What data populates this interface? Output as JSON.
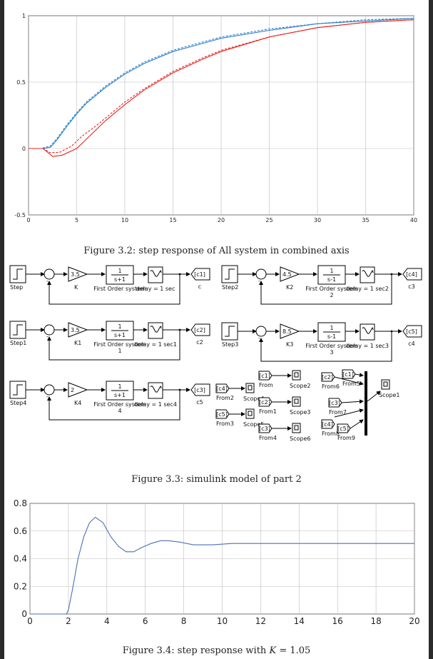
{
  "figure1": {
    "caption": "Figure 3.2: step response of All system in combined axis",
    "chart_data": {
      "type": "line",
      "title": "",
      "xlabel": "",
      "ylabel": "",
      "xlim": [
        0,
        40
      ],
      "ylim": [
        -0.5,
        1
      ],
      "xticks": [
        "0",
        "5",
        "10",
        "15",
        "20",
        "25",
        "30",
        "35",
        "40"
      ],
      "yticks": [
        "-0.5",
        "0",
        "0.5",
        "1"
      ],
      "grid": true,
      "series": [
        {
          "color": "#2a7fc9",
          "x": [
            0,
            1.5,
            2.3,
            3,
            4,
            5,
            6,
            8,
            10,
            12,
            15,
            18,
            20,
            25,
            30,
            35,
            40
          ],
          "y": [
            0,
            0,
            0.01,
            0.07,
            0.17,
            0.26,
            0.34,
            0.46,
            0.56,
            0.64,
            0.73,
            0.79,
            0.83,
            0.89,
            0.94,
            0.96,
            0.98
          ]
        },
        {
          "color": "#2a7fc9",
          "x": [
            0,
            1.3,
            2.3,
            3,
            4,
            5,
            6,
            8,
            10,
            12,
            15,
            18,
            20,
            25,
            30,
            35,
            40
          ],
          "y": [
            0,
            0,
            0.02,
            0.08,
            0.18,
            0.27,
            0.35,
            0.47,
            0.57,
            0.65,
            0.74,
            0.8,
            0.84,
            0.9,
            0.94,
            0.97,
            0.98
          ]
        },
        {
          "color": "#e8231e",
          "x": [
            0,
            1.5,
            2.5,
            3.5,
            5,
            6,
            7,
            8,
            10,
            12,
            15,
            18,
            20,
            25,
            30,
            35,
            40
          ],
          "y": [
            0,
            0,
            -0.06,
            -0.05,
            0.0,
            0.07,
            0.14,
            0.21,
            0.33,
            0.44,
            0.57,
            0.67,
            0.73,
            0.84,
            0.91,
            0.95,
            0.97
          ]
        },
        {
          "color": "#e8231e",
          "x": [
            0,
            1.5,
            2.2,
            3.2,
            4.5,
            5.5,
            7,
            8,
            10,
            12,
            15,
            18,
            20,
            25,
            30,
            35,
            40
          ],
          "y": [
            0,
            0,
            -0.03,
            -0.03,
            0.02,
            0.09,
            0.17,
            0.23,
            0.35,
            0.45,
            0.58,
            0.68,
            0.74,
            0.84,
            0.91,
            0.95,
            0.97
          ]
        }
      ]
    }
  },
  "figure2": {
    "caption": "Figure 3.3: simulink model of part 2",
    "rows": [
      {
        "step": "Step",
        "gain": "K",
        "gain_val": "3.5",
        "tf_num": "1",
        "tf_den": "s+1",
        "tf_label": "First Order system",
        "tf_label2": "",
        "delay": "delay = 1 sec",
        "goto": "[c1]",
        "goto_label": "c"
      },
      {
        "step": "Step2",
        "gain": "K2",
        "gain_val": "4.5",
        "tf_num": "1",
        "tf_den": "s-1",
        "tf_label": "First Order system",
        "tf_label2": "2",
        "delay": "delay = 1 sec2",
        "goto": "[c4]",
        "goto_label": "c3"
      },
      {
        "step": "Step1",
        "gain": "K1",
        "gain_val": "3.5",
        "tf_num": "1",
        "tf_den": "s+1",
        "tf_label": "First Order system",
        "tf_label2": "1",
        "delay": "delay = 1 sec1",
        "goto": "[c2]",
        "goto_label": "c2"
      },
      {
        "step": "Step3",
        "gain": "K3",
        "gain_val": "8.5",
        "tf_num": "1",
        "tf_den": "s-1",
        "tf_label": "First Order system",
        "tf_label2": "3",
        "delay": "delay = 1 sec3",
        "goto": "[c5]",
        "goto_label": "c4"
      },
      {
        "step": "Step4",
        "gain": "K4",
        "gain_val": "2",
        "tf_num": "1",
        "tf_den": "s+1",
        "tf_label": "First Order system",
        "tf_label2": "4",
        "delay": "delay = 1 sec4",
        "goto": "[c3]",
        "goto_label": "c5"
      }
    ],
    "from_blocks": [
      {
        "tag": "[c1]",
        "label": "From"
      },
      {
        "tag": "[c4]",
        "label": "From2"
      },
      {
        "tag": "[c2]",
        "label": "From1"
      },
      {
        "tag": "[c5]",
        "label": "From3"
      },
      {
        "tag": "[c3]",
        "label": "From4"
      },
      {
        "tag": "[c2]",
        "label": "From6"
      },
      {
        "tag": "[c1]",
        "label": "From5"
      },
      {
        "tag": "[c3]",
        "label": "From7"
      },
      {
        "tag": "[c4]",
        "label": "From8"
      },
      {
        "tag": "[c5]",
        "label": "From9"
      }
    ],
    "scopes": [
      "Scope2",
      "Scope4",
      "Scope3",
      "Scope5",
      "Scope6",
      "Scope1"
    ]
  },
  "figure3": {
    "caption_prefix": "Figure 3.4: step response with",
    "caption_var": "K",
    "caption_suffix": "= 1.05",
    "chart_data": {
      "type": "line",
      "title": "",
      "xlabel": "",
      "ylabel": "",
      "xlim": [
        0,
        20
      ],
      "ylim": [
        0,
        0.8
      ],
      "xticks": [
        "0",
        "2",
        "4",
        "6",
        "8",
        "10",
        "12",
        "14",
        "16",
        "18",
        "20"
      ],
      "yticks": [
        "0",
        "0.2",
        "0.4",
        "0.6",
        "0.8"
      ],
      "grid": true,
      "series": [
        {
          "color": "#4a6fb5",
          "x": [
            0,
            1.9,
            2.0,
            2.2,
            2.5,
            2.8,
            3.1,
            3.4,
            3.8,
            4.2,
            4.6,
            5.0,
            5.4,
            5.8,
            6.3,
            6.8,
            7.2,
            7.8,
            8.5,
            9.5,
            10.5,
            12,
            14,
            16,
            18,
            20
          ],
          "y": [
            0,
            0,
            0.03,
            0.17,
            0.4,
            0.56,
            0.66,
            0.7,
            0.66,
            0.56,
            0.49,
            0.45,
            0.45,
            0.48,
            0.51,
            0.53,
            0.53,
            0.52,
            0.5,
            0.5,
            0.51,
            0.51,
            0.51,
            0.51,
            0.51,
            0.51
          ]
        }
      ]
    }
  }
}
